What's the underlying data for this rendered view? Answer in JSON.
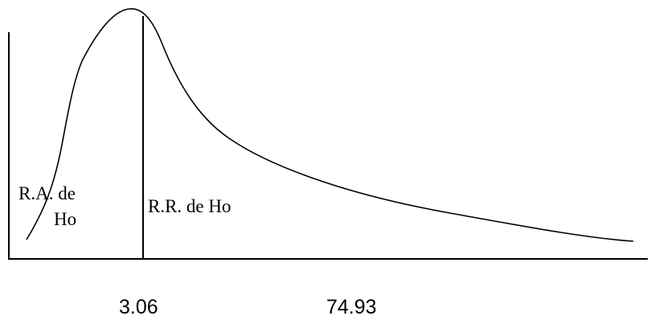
{
  "regions": {
    "acceptance_line1": "R.A. de",
    "acceptance_line2": "Ho",
    "rejection": "R.R. de Ho"
  },
  "axis_values": {
    "critical_value": "3.06",
    "test_statistic": "74.93"
  }
}
